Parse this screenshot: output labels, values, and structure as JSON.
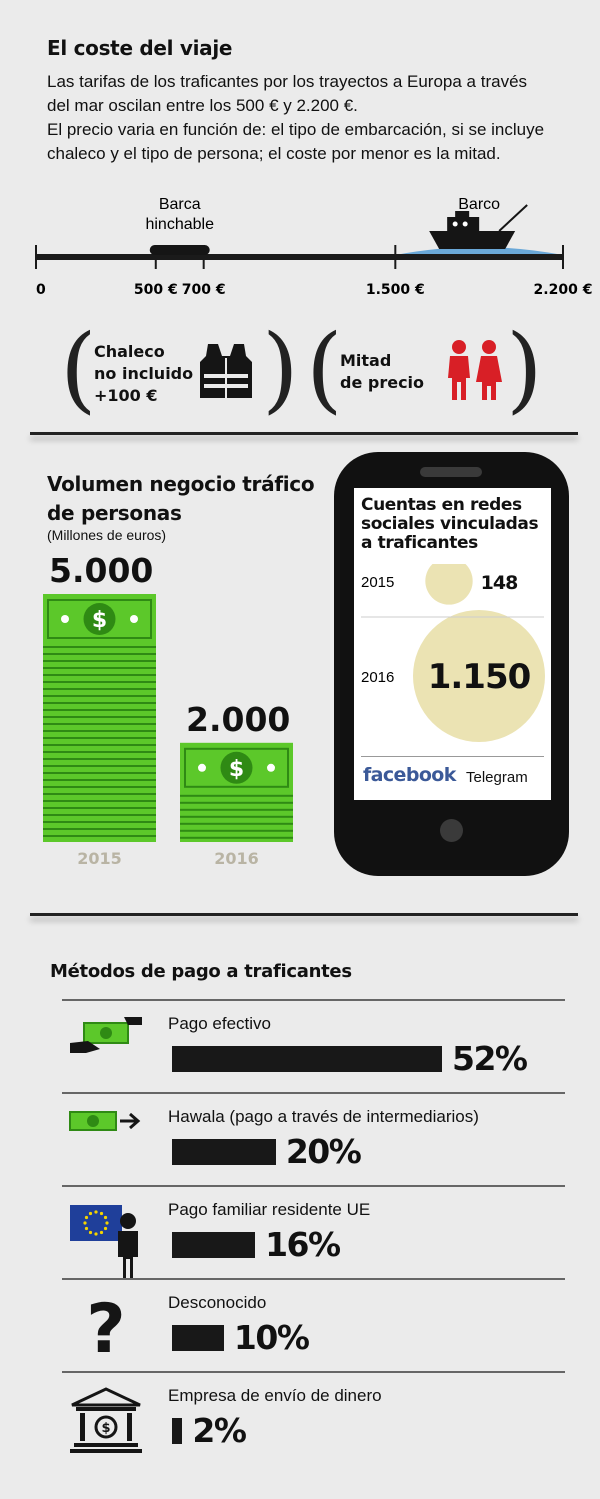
{
  "trip": {
    "title": "El coste del viaje",
    "intro": [
      "Las tarifas de los traficantes por los trayectos a Europa a través",
      "del mar oscilan entre los 500 € y 2.200 €.",
      "El precio varia en función de: el tipo de embarcación, si se incluye",
      "chaleco y el tipo de persona; el coste por menor es la mitad."
    ],
    "timeline": {
      "min": 0,
      "max": 2200,
      "ticks": [
        {
          "value": 0,
          "label": "0"
        },
        {
          "value": 500,
          "label": "500 €"
        },
        {
          "value": 700,
          "label": "700 €"
        },
        {
          "value": 1500,
          "label": "1.500 €"
        },
        {
          "value": 2200,
          "label": "2.200 €"
        }
      ],
      "ranges": [
        {
          "label_line1": "Barca",
          "label_line2": "hinchable",
          "from": 500,
          "to": 700,
          "icon": "dinghy-icon"
        },
        {
          "label_line1": "Barco",
          "label_line2": "",
          "from": 1500,
          "to": 2200,
          "icon": "boat-icon"
        }
      ]
    },
    "options": [
      {
        "lines": [
          "Chaleco",
          "no incluido",
          "+100 €"
        ],
        "icon": "life-vest-icon"
      },
      {
        "lines": [
          "Mitad",
          "de precio"
        ],
        "icon": "children-icon"
      }
    ]
  },
  "business": {
    "title_line1": "Volumen negocio tráfico",
    "title_line2": "de personas",
    "unit": "(Millones de euros)"
  },
  "social": {
    "title": [
      "Cuentas en redes",
      "sociales vinculadas",
      "a traficantes"
    ],
    "networks": [
      "facebook",
      "Telegram"
    ]
  },
  "payment": {
    "title": "Métodos de pago a traficantes"
  },
  "colors": {
    "background": "#ebebeb",
    "money_green": "#5cc82a",
    "money_dark": "#2f8a14",
    "circle_beige": "#ebe3b3",
    "facebook_blue": "#3b5998",
    "eu_blue": "#1f3f9a",
    "child_red": "#d81f26",
    "water_blue": "#6aa8d8"
  },
  "chart_data": [
    {
      "type": "bar",
      "title": "Volumen negocio tráfico de personas",
      "ylabel": "(Millones de euros)",
      "categories": [
        "2015",
        "2016"
      ],
      "values": [
        5000,
        2000
      ],
      "value_labels": [
        "5.000",
        "2.000"
      ]
    },
    {
      "type": "scatter",
      "title": "Cuentas en redes sociales vinculadas a traficantes",
      "categories": [
        "2015",
        "2016"
      ],
      "values": [
        148,
        1150
      ],
      "value_labels": [
        "148",
        "1.150"
      ]
    },
    {
      "type": "bar",
      "title": "Métodos de pago a traficantes",
      "categories": [
        "Pago efectivo",
        "Hawala (pago a través de intermediarios)",
        "Pago familiar residente UE",
        "Desconocido",
        "Empresa de envío de dinero"
      ],
      "values": [
        52,
        20,
        16,
        10,
        2
      ],
      "value_labels": [
        "52%",
        "20%",
        "16%",
        "10%",
        "2%"
      ],
      "icons": [
        "cash-hand-icon",
        "cash-transfer-icon",
        "eu-person-icon",
        "question-icon",
        "bank-icon"
      ]
    }
  ]
}
